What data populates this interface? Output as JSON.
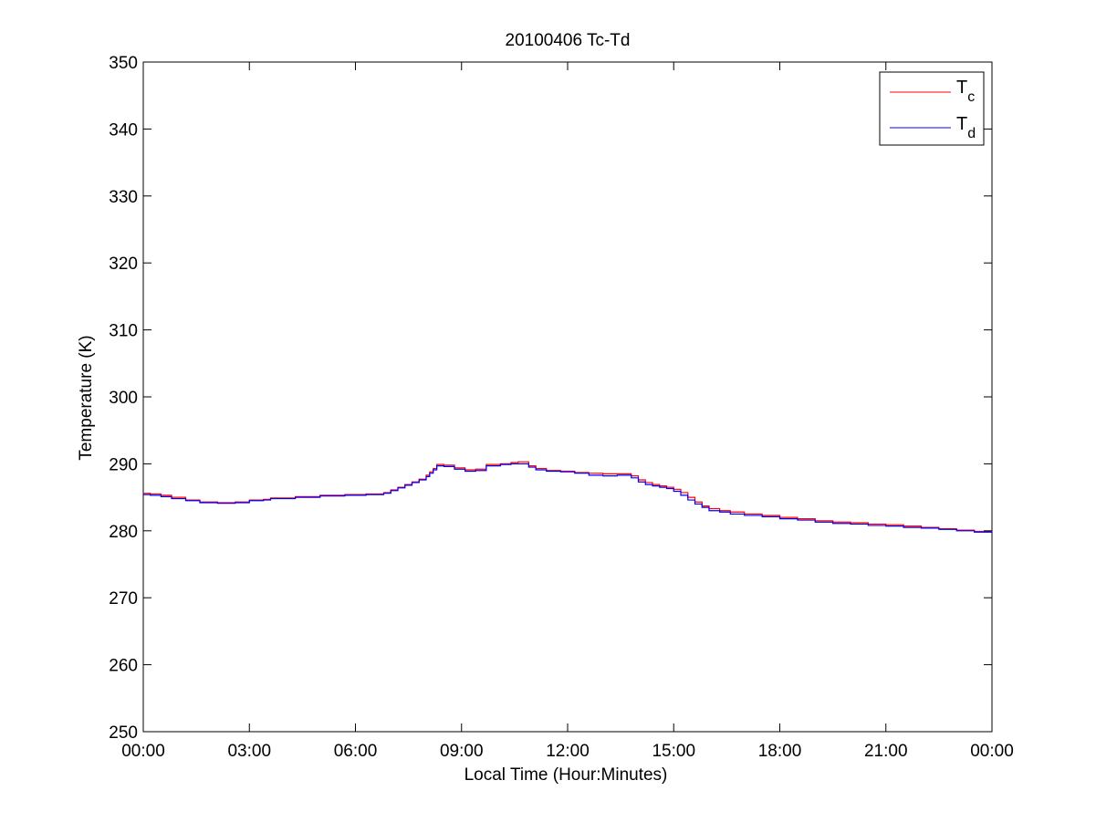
{
  "chart_data": {
    "type": "line",
    "title": "20100406 Tc-Td",
    "xlabel": "Local Time (Hour:Minutes)",
    "ylabel": "Temperature (K)",
    "xlim": [
      0,
      24
    ],
    "ylim": [
      250,
      350
    ],
    "x_ticks": [
      0,
      3,
      6,
      9,
      12,
      15,
      18,
      21,
      24
    ],
    "x_tick_labels": [
      "00:00",
      "03:00",
      "06:00",
      "09:00",
      "12:00",
      "15:00",
      "18:00",
      "21:00",
      "00:00"
    ],
    "y_ticks": [
      250,
      260,
      270,
      280,
      290,
      300,
      310,
      320,
      330,
      340,
      350
    ],
    "y_tick_labels": [
      "250",
      "260",
      "270",
      "280",
      "290",
      "300",
      "310",
      "320",
      "330",
      "340",
      "350"
    ],
    "grid": false,
    "legend_position": "top-right",
    "step": true,
    "series": [
      {
        "name": "Tc",
        "label_main": "T",
        "label_sub": "c",
        "color": "#ff0000",
        "x": [
          0,
          0.2,
          0.5,
          0.8,
          1.2,
          1.6,
          2.1,
          2.6,
          3.0,
          3.4,
          3.6,
          4.3,
          5.0,
          5.7,
          6.3,
          6.8,
          7.0,
          7.2,
          7.4,
          7.6,
          7.8,
          8.0,
          8.1,
          8.2,
          8.3,
          8.5,
          8.8,
          9.1,
          9.4,
          9.7,
          10.1,
          10.4,
          10.6,
          10.9,
          11.1,
          11.4,
          11.8,
          12.2,
          12.6,
          13.0,
          13.4,
          13.8,
          14.0,
          14.2,
          14.4,
          14.6,
          14.8,
          15.0,
          15.2,
          15.4,
          15.6,
          15.8,
          16.0,
          16.3,
          16.6,
          17.0,
          17.5,
          18.0,
          18.5,
          19.0,
          19.5,
          20.0,
          20.5,
          21.0,
          21.5,
          22.0,
          22.5,
          23.0,
          23.5,
          24.0
        ],
        "y": [
          285.6,
          285.5,
          285.3,
          285.0,
          284.6,
          284.3,
          284.2,
          284.3,
          284.6,
          284.7,
          284.9,
          285.1,
          285.3,
          285.4,
          285.5,
          285.7,
          286.1,
          286.5,
          286.9,
          287.3,
          287.7,
          288.3,
          288.8,
          289.3,
          289.9,
          289.8,
          289.4,
          289.1,
          289.2,
          289.9,
          290.0,
          290.2,
          290.3,
          289.7,
          289.3,
          289.0,
          288.9,
          288.7,
          288.6,
          288.5,
          288.5,
          288.2,
          287.6,
          287.2,
          286.9,
          286.7,
          286.5,
          286.2,
          285.7,
          285.0,
          284.3,
          283.7,
          283.3,
          283.0,
          282.8,
          282.5,
          282.3,
          282.0,
          281.8,
          281.5,
          281.3,
          281.2,
          281.0,
          280.9,
          280.7,
          280.5,
          280.3,
          280.1,
          279.9,
          279.8
        ]
      },
      {
        "name": "Td",
        "label_main": "T",
        "label_sub": "d",
        "color": "#0000ff",
        "x": [
          0,
          0.2,
          0.5,
          0.8,
          1.2,
          1.6,
          2.1,
          2.6,
          3.0,
          3.4,
          3.6,
          4.3,
          5.0,
          5.7,
          6.3,
          6.8,
          7.0,
          7.2,
          7.4,
          7.6,
          7.8,
          8.0,
          8.1,
          8.2,
          8.3,
          8.5,
          8.8,
          9.1,
          9.4,
          9.7,
          10.1,
          10.4,
          10.6,
          10.9,
          11.1,
          11.4,
          11.8,
          12.2,
          12.6,
          13.0,
          13.4,
          13.8,
          14.0,
          14.2,
          14.4,
          14.6,
          14.8,
          15.0,
          15.2,
          15.4,
          15.6,
          15.8,
          16.0,
          16.3,
          16.6,
          17.0,
          17.5,
          18.0,
          18.5,
          19.0,
          19.5,
          20.0,
          20.5,
          21.0,
          21.5,
          22.0,
          22.5,
          23.0,
          23.5,
          24.0
        ],
        "y": [
          285.4,
          285.3,
          285.1,
          284.8,
          284.5,
          284.2,
          284.1,
          284.2,
          284.5,
          284.6,
          284.8,
          285.0,
          285.2,
          285.3,
          285.4,
          285.6,
          286.0,
          286.4,
          286.8,
          287.2,
          287.6,
          288.1,
          288.6,
          289.1,
          289.7,
          289.6,
          289.2,
          288.9,
          289.0,
          289.7,
          289.9,
          290.0,
          290.0,
          289.5,
          289.1,
          288.9,
          288.8,
          288.6,
          288.3,
          288.2,
          288.3,
          287.9,
          287.3,
          286.9,
          286.7,
          286.5,
          286.3,
          285.9,
          285.3,
          284.6,
          284.0,
          283.5,
          283.0,
          282.8,
          282.5,
          282.3,
          282.1,
          281.8,
          281.6,
          281.3,
          281.1,
          281.0,
          280.8,
          280.7,
          280.5,
          280.4,
          280.2,
          280.0,
          279.8,
          279.7
        ]
      }
    ]
  }
}
